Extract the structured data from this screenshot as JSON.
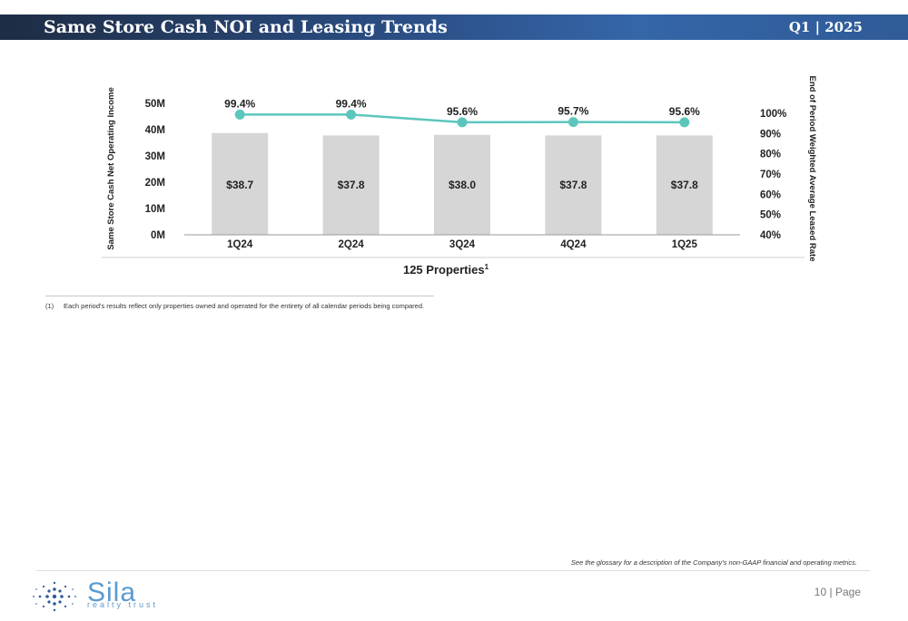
{
  "header": {
    "title": "Same Store Cash NOI and Leasing Trends",
    "period": "Q1 | 2025"
  },
  "chart_data": {
    "type": "bar",
    "categories": [
      "1Q24",
      "2Q24",
      "3Q24",
      "4Q24",
      "1Q25"
    ],
    "series": [
      {
        "values": [
          38.7,
          37.8,
          38.0,
          37.8,
          37.8
        ],
        "data_labels": [
          "$38.7",
          "$37.8",
          "$38.0",
          "$37.8",
          "$37.8"
        ],
        "color": "#d6d6d6",
        "axis": "left"
      },
      {
        "values": [
          99.4,
          99.4,
          95.6,
          95.7,
          95.6
        ],
        "data_labels": [
          "99.4%",
          "99.4%",
          "95.6%",
          "95.7%",
          "95.6%"
        ],
        "color": "#5cc6bd",
        "axis": "right",
        "render": "line"
      }
    ],
    "ylabel": "Same Store Cash Net Operating Income",
    "y2label": "End of Period Weighted Average Leased Rate",
    "xlabel": "125 Properties",
    "xlabel_sup": "1",
    "ylim": [
      0,
      50
    ],
    "yticks": [
      "0M",
      "10M",
      "20M",
      "30M",
      "40M",
      "50M"
    ],
    "y2lim": [
      40,
      100
    ],
    "y2ticks": [
      "40%",
      "50%",
      "60%",
      "70%",
      "80%",
      "90%",
      "100%"
    ],
    "grid": false,
    "legend": "none"
  },
  "footnote": {
    "number": "(1)",
    "text": "Each period's results reflect only properties owned and operated for the entirety of all calendar periods being compared."
  },
  "glossary_note": "See the glossary for a description of the Company's non-GAAP financial and operating metrics.",
  "logo": {
    "name": "Sila",
    "tagline": "realty trust"
  },
  "page": {
    "number": "10",
    "separator": "|",
    "label": "Page"
  }
}
